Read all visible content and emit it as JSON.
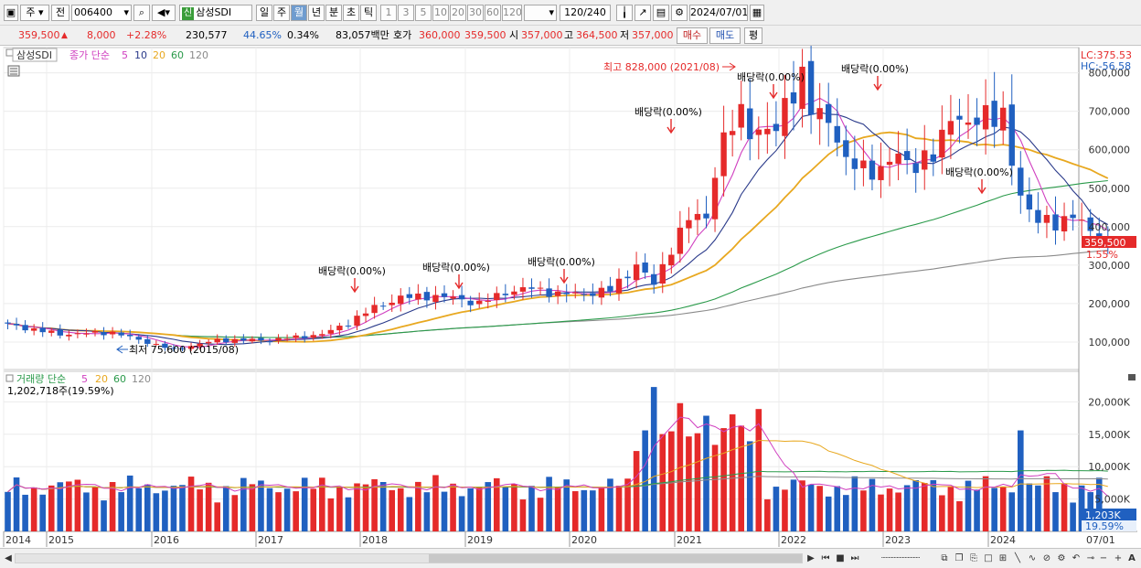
{
  "toolbar": {
    "period_main": "주",
    "prev_label": "전",
    "stock_code": "006400",
    "badge": "신",
    "stock_name": "삼성SDI",
    "periods": [
      {
        "label": "일",
        "selected": false
      },
      {
        "label": "주",
        "selected": false
      },
      {
        "label": "월",
        "selected": true
      },
      {
        "label": "년",
        "selected": false
      },
      {
        "label": "분",
        "selected": false
      },
      {
        "label": "초",
        "selected": false
      },
      {
        "label": "틱",
        "selected": false
      }
    ],
    "intervals": [
      "1",
      "3",
      "5",
      "10",
      "20",
      "30",
      "60",
      "120"
    ],
    "count": "120",
    "count_total": "/240",
    "date": "2024/07/01"
  },
  "quote": {
    "price": "359,500",
    "change": "8,000",
    "change_pct": "+2.28%",
    "volume": "230,577",
    "vol_ratio": "44.65%",
    "turnover": "0.34%",
    "amount": "83,057백만",
    "ask_label": "호가",
    "ask": "360,000",
    "bid": "359,500",
    "open_label": "시",
    "open": "357,000",
    "high_label": "고",
    "high": "364,500",
    "low_label": "저",
    "low": "357,000",
    "buy_label": "매수",
    "sell_label": "매도",
    "eval_label": "평"
  },
  "chart": {
    "stock_label": "삼성SDI",
    "price_legend": {
      "title": "종가 단순",
      "periods": [
        "5",
        "10",
        "20",
        "60",
        "120"
      ]
    },
    "volume_legend": {
      "title": "거래량 단순",
      "periods": [
        "5",
        "20",
        "60",
        "120"
      ]
    },
    "volume_info": "1,202,718주(19.59%)",
    "lc_label": "LC:375.53",
    "hc_label": "HC:-56.58",
    "current_price_tag": "359,500",
    "current_pct_tag": "1.55%",
    "volume_tag": "1,203K",
    "volume_pct_tag": "19.59%",
    "high_note": "최고 828,000 (2021/08)",
    "low_note": "최저 75,600 (2015/08)",
    "dividend_notes": [
      "배당락(0.00%)",
      "배당락(0.00%)",
      "배당락(0.00%)",
      "배당락(0.00%)",
      "배당락(0.00%)",
      "배당락(0.00%)",
      "배당락(0.00%)"
    ],
    "date_end_label": "07/01",
    "colors": {
      "up": "#e52a2a",
      "down": "#2060c0",
      "ma5": "#d040c0",
      "ma10": "#2a3a8a",
      "ma20": "#e8a820",
      "ma60": "#2a9a4a",
      "ma120": "#8a8a8a"
    }
  },
  "chart_data": [
    {
      "type": "candlestick",
      "title": "삼성SDI 월봉",
      "x_ticks": [
        "2014",
        "2015",
        "2016",
        "2017",
        "2018",
        "2019",
        "2020",
        "2021",
        "2022",
        "2023",
        "2024"
      ],
      "y_ticks": [
        "100,000",
        "200,000",
        "300,000",
        "400,000",
        "500,000",
        "600,000",
        "700,000",
        "800,000"
      ],
      "ylim": [
        0,
        830000
      ],
      "months": [
        "2014/01",
        "2014/07",
        "2015/01",
        "2015/08",
        "2016/01",
        "2016/07",
        "2017/01",
        "2017/04",
        "2017/07",
        "2017/10",
        "2018/01",
        "2018/04",
        "2018/07",
        "2018/10",
        "2019/01",
        "2019/04",
        "2019/07",
        "2019/10",
        "2020/01",
        "2020/03",
        "2020/05",
        "2020/07",
        "2020/09",
        "2020/10",
        "2020/11",
        "2020/12",
        "2021/01",
        "2021/02",
        "2021/03",
        "2021/05",
        "2021/06",
        "2021/08",
        "2021/09",
        "2021/11",
        "2022/01",
        "2022/03",
        "2022/05",
        "2022/07",
        "2022/09",
        "2022/11",
        "2023/01",
        "2023/03",
        "2023/05",
        "2023/07",
        "2023/08",
        "2023/09",
        "2023/11",
        "2024/01",
        "2024/03",
        "2024/05",
        "2024/07"
      ],
      "close": [
        145000,
        120000,
        125000,
        80000,
        105000,
        105000,
        120000,
        150000,
        190000,
        215000,
        220000,
        215000,
        200000,
        230000,
        240000,
        225000,
        225000,
        235000,
        300000,
        250000,
        345000,
        420000,
        430000,
        540000,
        620000,
        660000,
        700000,
        660000,
        640000,
        650000,
        730000,
        780000,
        700000,
        690000,
        560000,
        560000,
        540000,
        590000,
        560000,
        580000,
        700000,
        650000,
        705000,
        680000,
        560000,
        480000,
        420000,
        400000,
        440000,
        380000,
        359500
      ],
      "highlights": {
        "max": {
          "value": 828000,
          "date": "2021/08"
        },
        "min": {
          "value": 75600,
          "date": "2015/08"
        }
      }
    },
    {
      "type": "bar",
      "title": "거래량",
      "y_ticks": [
        "5,000K",
        "10,000K",
        "15,000K",
        "20,000K"
      ],
      "ylim": [
        0,
        23000
      ],
      "units": "K",
      "max_bar": 22300,
      "last_volume_k": 1203
    }
  ],
  "bottom": {
    "icons": [
      "prev-icon",
      "play-icon",
      "rewind-icon",
      "stop-icon",
      "forward-icon",
      "zoom-slider",
      "compare-icon",
      "restore-icon",
      "copy-icon",
      "window-icon",
      "nav-icon",
      "draw-line-icon",
      "draw-wave-icon",
      "fib-icon",
      "settings-icon",
      "undo-icon",
      "minus-icon",
      "plus-icon",
      "font-icon"
    ]
  }
}
